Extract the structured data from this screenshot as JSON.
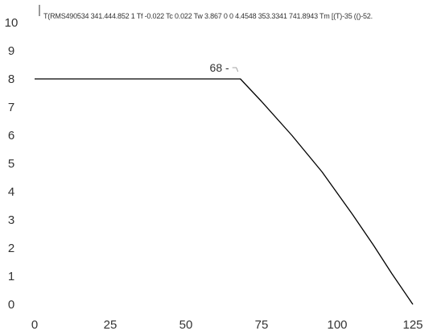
{
  "chart_data": {
    "type": "line",
    "title": "",
    "header_text": "T(RMS490534 341.444.852 1 Tf -0.022 Tc 0.022 Tw 3.867 0 0 4.4548 353.3341 741.8943 Tm [(T)-35 (()-52.",
    "xlabel": "",
    "ylabel": "",
    "xlim": [
      0,
      125
    ],
    "ylim": [
      0,
      10
    ],
    "x_ticks": [
      0,
      25,
      50,
      75,
      100,
      125
    ],
    "y_ticks": [
      0,
      1,
      2,
      3,
      4,
      5,
      6,
      7,
      8,
      9,
      10
    ],
    "grid": false,
    "legend": "none",
    "series": [
      {
        "x": [
          0,
          68,
          75,
          85,
          95,
          105,
          112,
          118,
          125
        ],
        "y": [
          8,
          8,
          7.2,
          6.0,
          4.7,
          3.2,
          2.1,
          1.1,
          0
        ]
      }
    ],
    "annotations": [
      {
        "text": "68 -",
        "x": 68,
        "y": 8
      }
    ],
    "colors": {
      "line": "#000000",
      "text": "#333333",
      "marker": "#888888"
    }
  }
}
